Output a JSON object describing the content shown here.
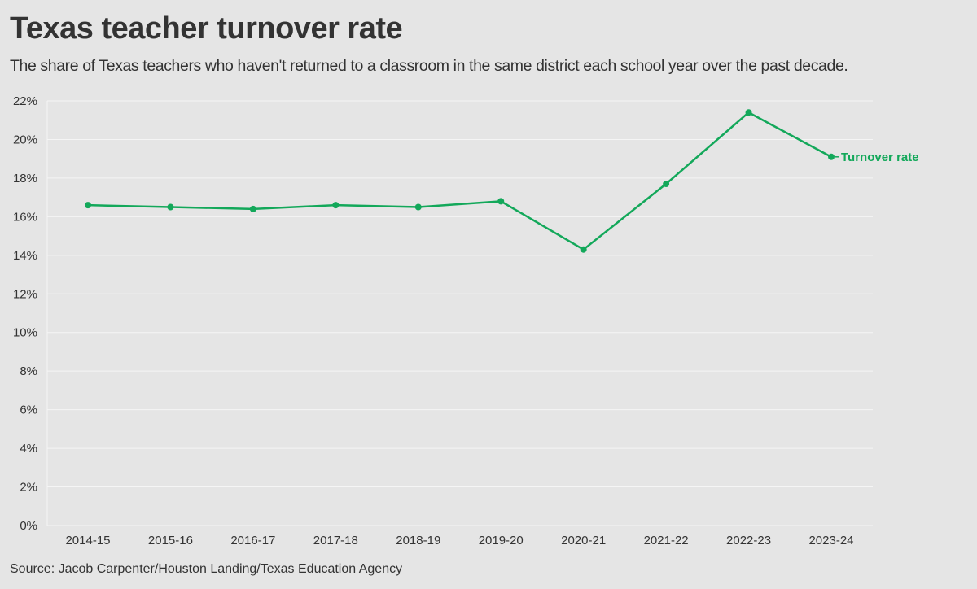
{
  "colors": {
    "background": "#e5e5e5",
    "gridline": "#f5f5f5",
    "series": "#13a85a",
    "text": "#333333"
  },
  "chart_data": {
    "type": "line",
    "title": "Texas teacher turnover rate",
    "subtitle": "The share of Texas teachers who haven't returned to a classroom in the same district each school year over the past decade.",
    "source": "Source: Jacob Carpenter/Houston Landing/Texas Education Agency",
    "xlabel": "",
    "ylabel": "",
    "categories": [
      "2014-15",
      "2015-16",
      "2016-17",
      "2017-18",
      "2018-19",
      "2019-20",
      "2020-21",
      "2021-22",
      "2022-23",
      "2023-24"
    ],
    "series": [
      {
        "name": "Turnover rate",
        "values": [
          16.6,
          16.5,
          16.4,
          16.6,
          16.5,
          16.8,
          14.3,
          17.7,
          21.4,
          19.1
        ]
      }
    ],
    "ylim": [
      0,
      22
    ],
    "y_ticks": [
      0,
      2,
      4,
      6,
      8,
      10,
      12,
      14,
      16,
      18,
      20,
      22
    ],
    "y_tick_labels": [
      "0%",
      "2%",
      "4%",
      "6%",
      "8%",
      "10%",
      "12%",
      "14%",
      "16%",
      "18%",
      "20%",
      "22%"
    ],
    "grid": true,
    "legend": "direct label at end of line"
  }
}
